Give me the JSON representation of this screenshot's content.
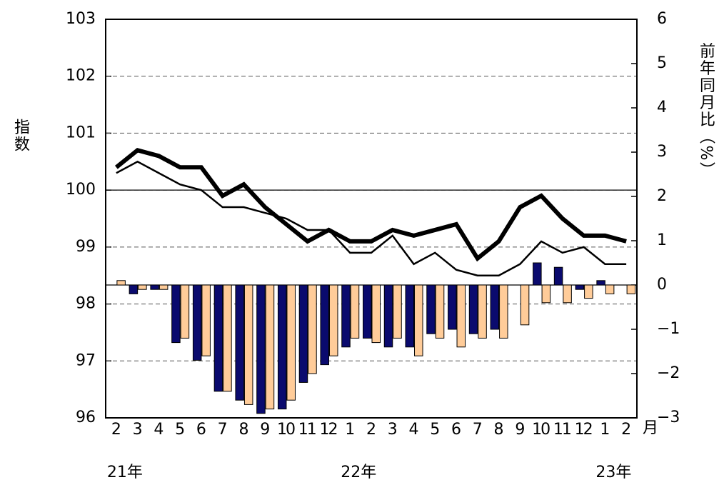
{
  "chart_data": {
    "type": "bar_line",
    "y_label": "指数",
    "y2_label": "前年同月比（%）",
    "x_unit": "月",
    "categories": [
      "2",
      "3",
      "4",
      "5",
      "6",
      "7",
      "8",
      "9",
      "10",
      "11",
      "12",
      "1",
      "2",
      "3",
      "4",
      "5",
      "6",
      "7",
      "8",
      "9",
      "10",
      "11",
      "12",
      "1",
      "2"
    ],
    "year_labels": [
      "21年",
      null,
      null,
      null,
      null,
      null,
      null,
      null,
      null,
      null,
      null,
      "22年",
      null,
      null,
      null,
      null,
      null,
      null,
      null,
      null,
      null,
      null,
      null,
      "23年",
      null
    ],
    "ylim": [
      96,
      103
    ],
    "yticks": [
      96,
      97,
      98,
      99,
      100,
      101,
      102,
      103
    ],
    "y2lim": [
      -3,
      6
    ],
    "y2ticks": [
      {
        "value": -3,
        "label": "−3"
      },
      {
        "value": -2,
        "label": "−2"
      },
      {
        "value": -1,
        "label": "−1"
      },
      0,
      1,
      2,
      3,
      4,
      5,
      6
    ],
    "grid": true,
    "y_reference_line": 100,
    "series": [
      {
        "kind": "bar",
        "axis": "y2",
        "color": "#0a0a6e",
        "values": [
          null,
          -0.2,
          -0.1,
          -1.3,
          -1.7,
          -2.4,
          -2.6,
          -2.9,
          -2.8,
          -2.2,
          -1.8,
          -1.4,
          -1.2,
          -1.4,
          -1.4,
          -1.1,
          -1.0,
          -1.1,
          -1.0,
          null,
          0.5,
          0.4,
          -0.1,
          0.1,
          null
        ]
      },
      {
        "kind": "bar",
        "axis": "y2",
        "color": "#ffcc99",
        "values": [
          0.1,
          -0.1,
          -0.1,
          -1.2,
          -1.6,
          -2.4,
          -2.7,
          -2.8,
          -2.6,
          -2.0,
          -1.6,
          -1.2,
          -1.3,
          -1.2,
          -1.6,
          -1.2,
          -1.4,
          -1.2,
          -1.2,
          -0.9,
          -0.4,
          -0.4,
          -0.3,
          -0.2,
          -0.2
        ]
      },
      {
        "kind": "line",
        "color": "#000000",
        "width": 6,
        "values": [
          100.4,
          100.7,
          100.6,
          100.4,
          100.4,
          99.9,
          100.1,
          99.7,
          99.4,
          99.1,
          99.3,
          99.1,
          99.1,
          99.3,
          99.2,
          99.3,
          99.4,
          98.8,
          99.1,
          99.7,
          99.9,
          99.5,
          99.2,
          99.2,
          99.1
        ]
      },
      {
        "kind": "line",
        "color": "#000000",
        "width": 2.5,
        "values": [
          100.3,
          100.5,
          100.3,
          100.1,
          100.0,
          99.7,
          99.7,
          99.6,
          99.5,
          99.3,
          99.3,
          98.9,
          98.9,
          99.2,
          98.7,
          98.9,
          98.6,
          98.5,
          98.5,
          98.7,
          99.1,
          98.9,
          99.0,
          98.7,
          98.7
        ]
      }
    ]
  }
}
